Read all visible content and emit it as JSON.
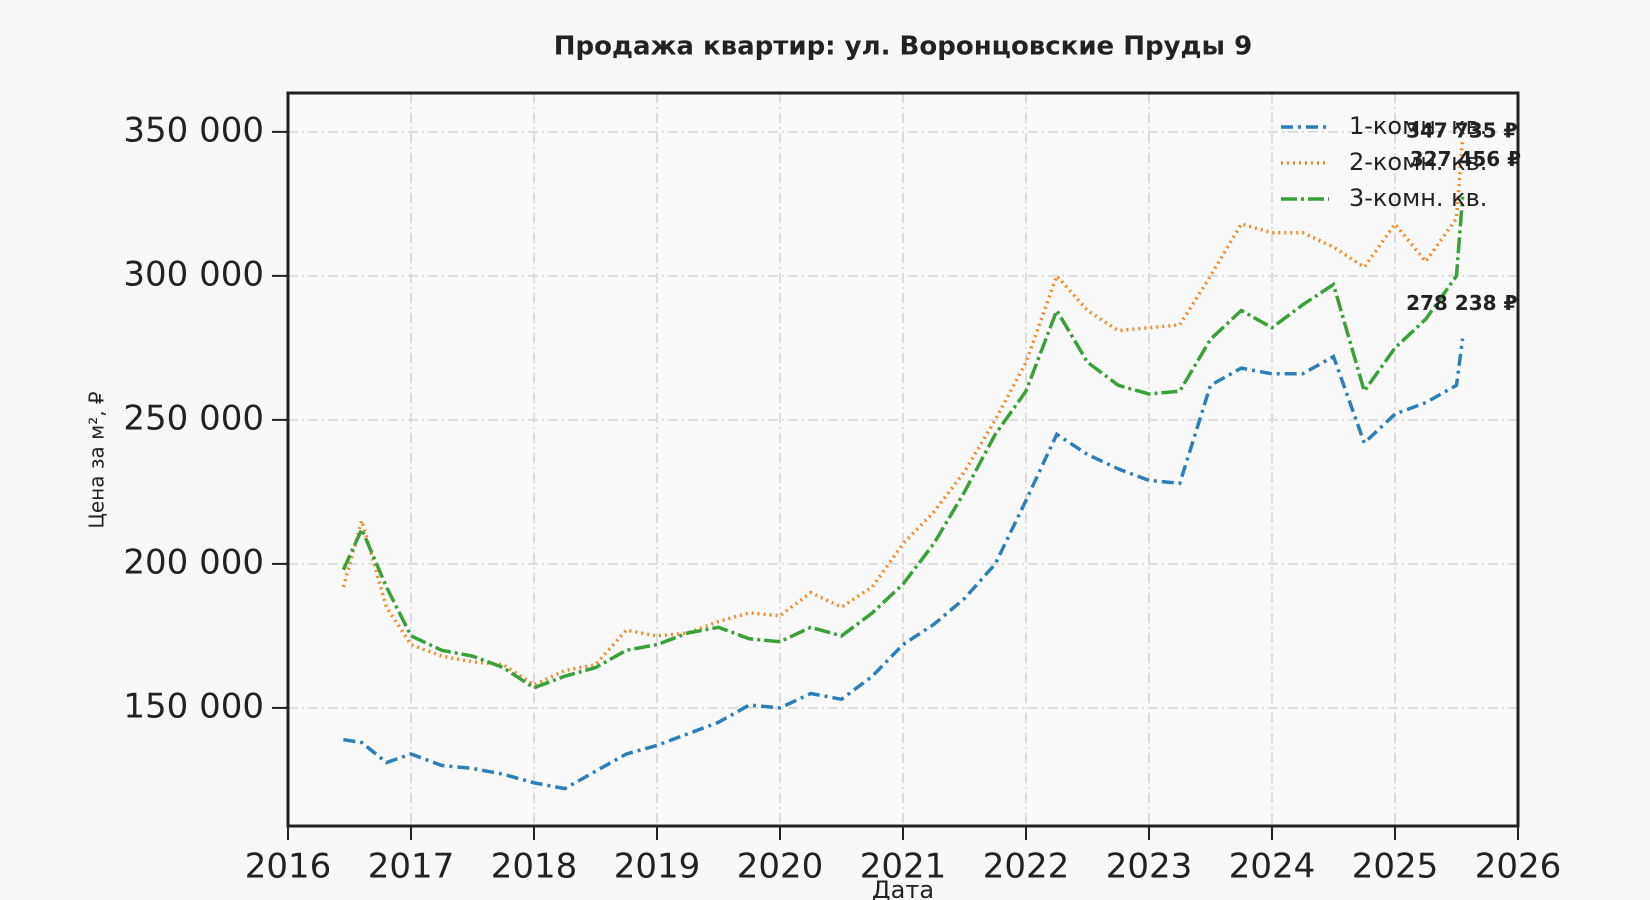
{
  "chart_data": {
    "type": "line",
    "title": "Продажа квартир: ул. Воронцовские Пруды 9",
    "x_label": "Дата",
    "y_label": "Цена за м², ₽",
    "x": [
      2016.45,
      2016.6,
      2016.8,
      2017.0,
      2017.25,
      2017.5,
      2017.75,
      2018.0,
      2018.25,
      2018.5,
      2018.75,
      2019.0,
      2019.25,
      2019.5,
      2019.75,
      2020.0,
      2020.25,
      2020.5,
      2020.75,
      2021.0,
      2021.25,
      2021.5,
      2021.75,
      2022.0,
      2022.25,
      2022.5,
      2022.75,
      2023.0,
      2023.25,
      2023.5,
      2023.75,
      2024.0,
      2024.25,
      2024.5,
      2024.75,
      2025.0,
      2025.25,
      2025.5,
      2025.55
    ],
    "series": [
      {
        "name": "1-комн. кв.",
        "color": "#2e7eb8",
        "dash": "12,5,3,5",
        "values": [
          139000,
          138000,
          131000,
          134000,
          130000,
          129000,
          127000,
          124000,
          122000,
          128000,
          134000,
          137000,
          141000,
          145000,
          151000,
          150000,
          155000,
          153000,
          161000,
          172000,
          179000,
          188000,
          200000,
          222000,
          245000,
          238000,
          233000,
          229000,
          228000,
          262000,
          268000,
          266000,
          266000,
          272000,
          242000,
          252000,
          256000,
          262000,
          278238
        ]
      },
      {
        "name": "2-комн. кв.",
        "color": "#f28a2a",
        "dash": "2,4",
        "values": [
          192000,
          215000,
          185000,
          172000,
          168000,
          166000,
          165000,
          158000,
          163000,
          165000,
          177000,
          175000,
          176000,
          180000,
          183000,
          182000,
          190000,
          185000,
          192000,
          207000,
          218000,
          232000,
          250000,
          270000,
          300000,
          288000,
          281000,
          282000,
          283000,
          300000,
          318000,
          315000,
          315000,
          310000,
          303000,
          318000,
          305000,
          320000,
          347735
        ]
      },
      {
        "name": "3-комн. кв.",
        "color": "#3aa03a",
        "dash": "16,4,3,4",
        "values": [
          198000,
          212000,
          192000,
          175000,
          170000,
          168000,
          164000,
          157000,
          161000,
          164000,
          170000,
          172000,
          176000,
          178000,
          174000,
          173000,
          178000,
          175000,
          183000,
          193000,
          207000,
          225000,
          245000,
          260000,
          288000,
          270000,
          262000,
          259000,
          260000,
          278000,
          288000,
          282000,
          290000,
          297000,
          260000,
          275000,
          285000,
          300000,
          327456
        ]
      }
    ],
    "annotations": [
      {
        "text": "347 735 ₽",
        "x": 2025.09,
        "y": 350000,
        "color": "#f28a2a"
      },
      {
        "text": "327 456 ₽",
        "x": 2025.12,
        "y": 340000,
        "color": "#3aa03a"
      },
      {
        "text": "278 238 ₽",
        "x": 2025.09,
        "y": 290000,
        "color": "#2e7eb8"
      }
    ],
    "xlim": [
      2016,
      2026
    ],
    "xticks": [
      2016,
      2017,
      2018,
      2019,
      2020,
      2021,
      2022,
      2023,
      2024,
      2025,
      2026
    ],
    "ylim": [
      109000,
      363500
    ],
    "yticks": [
      {
        "value": 150000,
        "label": "150 000"
      },
      {
        "value": 200000,
        "label": "200 000"
      },
      {
        "value": 250000,
        "label": "250 000"
      },
      {
        "value": 300000,
        "label": "300 000"
      },
      {
        "value": 350000,
        "label": "350 000"
      }
    ],
    "grid": true,
    "legend": "upper right"
  }
}
